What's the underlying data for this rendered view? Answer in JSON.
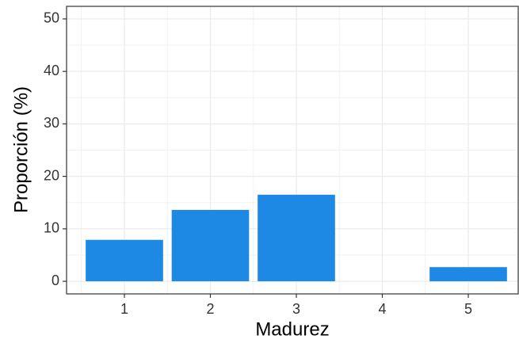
{
  "chart_data": {
    "type": "bar",
    "categories": [
      "1",
      "2",
      "3",
      "4",
      "5"
    ],
    "values": [
      7.9,
      13.6,
      16.5,
      0,
      2.7
    ],
    "color": "#1E88E5",
    "xlabel": "Madurez",
    "ylabel": "Proporción (%)",
    "ylim": [
      -2.4,
      52.4
    ],
    "yticks": [
      0,
      10,
      20,
      30,
      40,
      50
    ],
    "grid": true
  }
}
